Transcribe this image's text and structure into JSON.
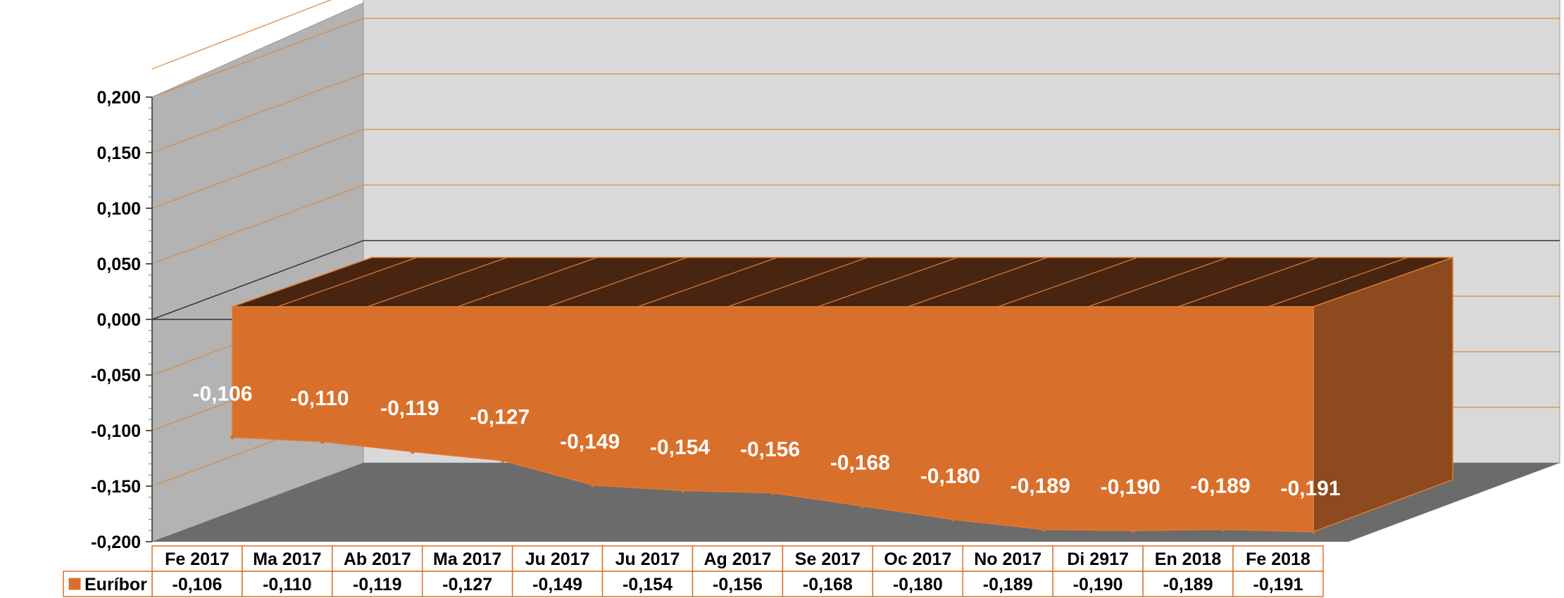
{
  "chart_data": {
    "type": "area",
    "title": "",
    "xlabel": "",
    "ylabel": "",
    "ylim": [
      -0.2,
      0.2
    ],
    "yticks": [
      "0,200",
      "0,150",
      "0,100",
      "0,050",
      "0,000",
      "-0,050",
      "-0,100",
      "-0,150",
      "-0,200"
    ],
    "ytick_values": [
      0.2,
      0.15,
      0.1,
      0.05,
      0,
      -0.05,
      -0.1,
      -0.15,
      -0.2
    ],
    "categories": [
      "Fe 2017",
      "Ma 2017",
      "Ab 2017",
      "Ma 2017",
      "Ju  2017",
      "Ju 2017",
      "Ag 2017",
      "Se  2017",
      "Oc 2017",
      "No  2017",
      "Di 2917",
      "En 2018",
      "Fe 2018"
    ],
    "series": [
      {
        "name": "Euríbor",
        "values": [
          -0.106,
          -0.11,
          -0.119,
          -0.127,
          -0.149,
          -0.154,
          -0.156,
          -0.168,
          -0.18,
          -0.189,
          -0.19,
          -0.189,
          -0.191
        ],
        "labels": [
          "-0,106",
          "-0,110",
          "-0,119",
          "-0,127",
          "-0,149",
          "-0,154",
          "-0,156",
          "-0,168",
          "-0,180",
          "-0,189",
          "-0,190",
          "-0,189",
          "-0,191"
        ]
      }
    ],
    "legend": "data-table",
    "grid": true,
    "colors": {
      "front": "#D8702C",
      "top": "#482510",
      "side": "#8C4A1E",
      "wall_left": "#B3B3B3",
      "wall_back": "#D9D9D9",
      "floor": "#6B6B6B",
      "grid": "#E0883C",
      "zero": "#333333"
    }
  }
}
